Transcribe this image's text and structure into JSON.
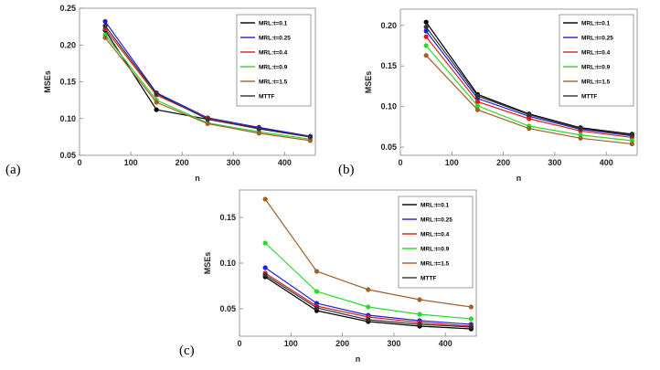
{
  "chart_data": [
    {
      "type": "line",
      "panel_label": "(a)",
      "xlabel": "n",
      "ylabel": "MSEs",
      "xlim": [
        0,
        460
      ],
      "ylim": [
        0.05,
        0.25
      ],
      "x_ticks": [
        "0",
        "100",
        "200",
        "300",
        "400"
      ],
      "y_ticks": [
        "0.05",
        "0.10",
        "0.15",
        "0.20",
        "0.25"
      ],
      "x": [
        50,
        150,
        250,
        350,
        450
      ],
      "series": [
        {
          "name": "MRL:t=0.1",
          "color": "#000000",
          "values": [
            0.22,
            0.112,
            0.099,
            0.087,
            0.075
          ]
        },
        {
          "name": "MRL:t=0.25",
          "color": "#1f1fd6",
          "values": [
            0.232,
            0.135,
            0.101,
            0.088,
            0.076
          ]
        },
        {
          "name": "MRL:t=0.4",
          "color": "#d81f1f",
          "values": [
            0.222,
            0.132,
            0.1,
            0.086,
            0.075
          ]
        },
        {
          "name": "MRL:t=0.9",
          "color": "#2ed62e",
          "values": [
            0.214,
            0.125,
            0.094,
            0.082,
            0.072
          ]
        },
        {
          "name": "MRL:t=1.5",
          "color": "#a0602a",
          "values": [
            0.21,
            0.122,
            0.093,
            0.08,
            0.07
          ]
        },
        {
          "name": "MTTF",
          "color": "#333333",
          "values": [
            0.226,
            0.134,
            0.099,
            0.086,
            0.075
          ]
        }
      ]
    },
    {
      "type": "line",
      "panel_label": "(b)",
      "xlabel": "n",
      "ylabel": "MSEs",
      "xlim": [
        0,
        460
      ],
      "ylim": [
        0.04,
        0.22
      ],
      "x_ticks": [
        "0",
        "100",
        "200",
        "300",
        "400"
      ],
      "y_ticks": [
        "0.05",
        "0.10",
        "0.15",
        "0.20"
      ],
      "x": [
        50,
        150,
        250,
        350,
        450
      ],
      "series": [
        {
          "name": "MRL:t=0.1",
          "color": "#000000",
          "values": [
            0.204,
            0.115,
            0.091,
            0.074,
            0.066
          ]
        },
        {
          "name": "MRL:t=0.25",
          "color": "#1f1fd6",
          "values": [
            0.193,
            0.11,
            0.088,
            0.072,
            0.064
          ]
        },
        {
          "name": "MRL:t=0.4",
          "color": "#d81f1f",
          "values": [
            0.186,
            0.106,
            0.085,
            0.07,
            0.062
          ]
        },
        {
          "name": "MRL:t=0.9",
          "color": "#2ed62e",
          "values": [
            0.175,
            0.101,
            0.076,
            0.065,
            0.058
          ]
        },
        {
          "name": "MRL:t=1.5",
          "color": "#a0602a",
          "values": [
            0.163,
            0.096,
            0.073,
            0.061,
            0.054
          ]
        },
        {
          "name": "MTTF",
          "color": "#333333",
          "values": [
            0.198,
            0.113,
            0.09,
            0.073,
            0.065
          ]
        }
      ]
    },
    {
      "type": "line",
      "panel_label": "(c)",
      "xlabel": "n",
      "ylabel": "MSEs",
      "xlim": [
        0,
        460
      ],
      "ylim": [
        0.02,
        0.18
      ],
      "x_ticks": [
        "0",
        "100",
        "200",
        "300",
        "400"
      ],
      "y_ticks": [
        "0.05",
        "0.10",
        "0.15"
      ],
      "x": [
        50,
        150,
        250,
        350,
        450
      ],
      "series": [
        {
          "name": "MRL:t=0.1",
          "color": "#000000",
          "values": [
            0.085,
            0.048,
            0.036,
            0.031,
            0.028
          ]
        },
        {
          "name": "MRL:t=0.25",
          "color": "#1f1fd6",
          "values": [
            0.095,
            0.056,
            0.043,
            0.037,
            0.033
          ]
        },
        {
          "name": "MRL:t=0.4",
          "color": "#d81f1f",
          "values": [
            0.089,
            0.053,
            0.041,
            0.035,
            0.031
          ]
        },
        {
          "name": "MRL:t=0.9",
          "color": "#2ed62e",
          "values": [
            0.122,
            0.069,
            0.052,
            0.044,
            0.039
          ]
        },
        {
          "name": "MRL:t=1.5",
          "color": "#a0602a",
          "values": [
            0.17,
            0.091,
            0.071,
            0.06,
            0.052
          ]
        },
        {
          "name": "MTTF",
          "color": "#333333",
          "values": [
            0.087,
            0.051,
            0.038,
            0.033,
            0.03
          ]
        }
      ]
    }
  ]
}
